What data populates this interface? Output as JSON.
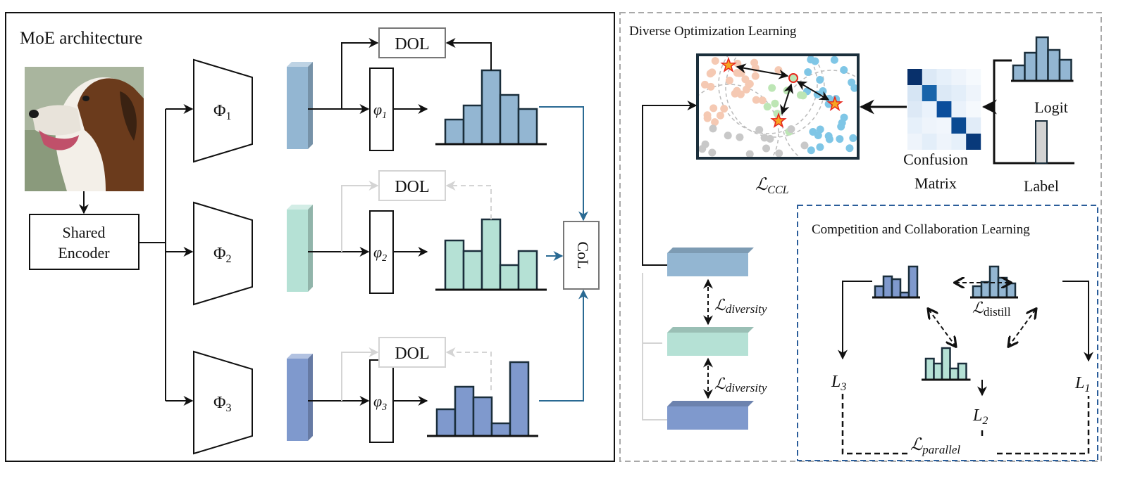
{
  "left_panel": {
    "title": "MoE architecture",
    "encoder_label_line1": "Shared",
    "encoder_label_line2": "Encoder",
    "experts": [
      {
        "phi_upper": "Φ",
        "phi_upper_sub": "1",
        "phi_lower": "φ",
        "phi_lower_sub": "1",
        "dol": "DOL",
        "color": "#93b6d2"
      },
      {
        "phi_upper": "Φ",
        "phi_upper_sub": "2",
        "phi_lower": "φ",
        "phi_lower_sub": "2",
        "dol": "DOL",
        "color": "#b5e1d5"
      },
      {
        "phi_upper": "Φ",
        "phi_upper_sub": "3",
        "phi_lower": "φ",
        "phi_lower_sub": "3",
        "dol": "DOL",
        "color": "#7f99cd"
      }
    ],
    "col_label": "CoL"
  },
  "dol_panel": {
    "title": "Diverse Optimization Learning",
    "ccl_loss": "ℒ",
    "ccl_loss_sub": "CCL",
    "confusion_line1": "Confusion",
    "confusion_line2": "Matrix",
    "logit_label": "Logit",
    "label_label": "Label",
    "diversity_loss": "ℒ",
    "diversity_loss_sub": "diversity"
  },
  "col_panel": {
    "title": "Competition and Collaboration Learning",
    "distill_loss": "ℒ",
    "distill_loss_sub": "distill",
    "l3": "L",
    "l3_sub": "3",
    "l1": "L",
    "l1_sub": "1",
    "l2": "L",
    "l2_sub": "2",
    "parallel_loss": "ℒ",
    "parallel_loss_sub": "parallel"
  },
  "colors": {
    "outline": "#1a2e3b",
    "col_arrow": "#2a6a93",
    "col_box_border": "#2a5d9a",
    "panel_border_gray": "#a8a8a8"
  }
}
